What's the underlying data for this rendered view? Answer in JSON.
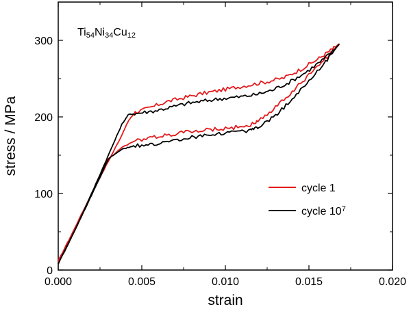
{
  "chart_data": {
    "type": "line",
    "xlabel": "strain",
    "ylabel": "stress / MPa",
    "xlim": [
      0.0,
      0.02
    ],
    "ylim": [
      0,
      350
    ],
    "x_ticks": [
      0.0,
      0.005,
      0.01,
      0.015,
      0.02
    ],
    "x_tick_labels": [
      "0.000",
      "0.005",
      "0.010",
      "0.015",
      "0.020"
    ],
    "y_ticks": [
      0,
      100,
      200,
      300
    ],
    "y_tick_labels": [
      "0",
      "100",
      "200",
      "300"
    ],
    "grid": false,
    "legend_position": "bottom-right",
    "annotation": {
      "parts": [
        {
          "text": "Ti",
          "sub": false
        },
        {
          "text": "54",
          "sub": true
        },
        {
          "text": "Ni",
          "sub": false
        },
        {
          "text": "34",
          "sub": true
        },
        {
          "text": "Cu",
          "sub": false
        },
        {
          "text": "12",
          "sub": true
        }
      ]
    },
    "series": [
      {
        "name": "cycle 1",
        "label_base": "cycle 1",
        "label_sup": "",
        "color": "#e31a1c",
        "points": [
          [
            0.0,
            12
          ],
          [
            0.001,
            55
          ],
          [
            0.002,
            100
          ],
          [
            0.003,
            142
          ],
          [
            0.0038,
            176
          ],
          [
            0.0042,
            195
          ],
          [
            0.0046,
            206
          ],
          [
            0.0055,
            212
          ],
          [
            0.0065,
            220
          ],
          [
            0.0075,
            225
          ],
          [
            0.0085,
            230
          ],
          [
            0.0095,
            234
          ],
          [
            0.0105,
            238
          ],
          [
            0.0115,
            242
          ],
          [
            0.0125,
            246
          ],
          [
            0.0135,
            251
          ],
          [
            0.0145,
            262
          ],
          [
            0.0155,
            275
          ],
          [
            0.0163,
            287
          ],
          [
            0.0168,
            295
          ],
          [
            0.016,
            276
          ],
          [
            0.015,
            255
          ],
          [
            0.014,
            233
          ],
          [
            0.013,
            212
          ],
          [
            0.012,
            195
          ],
          [
            0.0115,
            190
          ],
          [
            0.0105,
            186
          ],
          [
            0.0095,
            184
          ],
          [
            0.0085,
            182
          ],
          [
            0.0075,
            180
          ],
          [
            0.0065,
            176
          ],
          [
            0.0055,
            173
          ],
          [
            0.0045,
            168
          ],
          [
            0.0038,
            160
          ],
          [
            0.003,
            145
          ],
          [
            0.002,
            100
          ],
          [
            0.001,
            55
          ],
          [
            0.0,
            10
          ]
        ]
      },
      {
        "name": "cycle 10^7",
        "label_base": "cycle 10",
        "label_sup": "7",
        "color": "#000000",
        "points": [
          [
            0.0,
            8
          ],
          [
            0.001,
            52
          ],
          [
            0.002,
            100
          ],
          [
            0.003,
            150
          ],
          [
            0.0038,
            190
          ],
          [
            0.0042,
            203
          ],
          [
            0.0048,
            205
          ],
          [
            0.0058,
            208
          ],
          [
            0.0068,
            213
          ],
          [
            0.0078,
            218
          ],
          [
            0.0088,
            221
          ],
          [
            0.0098,
            224
          ],
          [
            0.0108,
            226
          ],
          [
            0.0118,
            229
          ],
          [
            0.0128,
            235
          ],
          [
            0.0138,
            245
          ],
          [
            0.0148,
            258
          ],
          [
            0.0158,
            274
          ],
          [
            0.0165,
            287
          ],
          [
            0.0168,
            295
          ],
          [
            0.016,
            272
          ],
          [
            0.015,
            247
          ],
          [
            0.014,
            222
          ],
          [
            0.013,
            202
          ],
          [
            0.012,
            187
          ],
          [
            0.0115,
            182
          ],
          [
            0.0105,
            180
          ],
          [
            0.0095,
            178
          ],
          [
            0.0085,
            175
          ],
          [
            0.0075,
            172
          ],
          [
            0.0065,
            167
          ],
          [
            0.0055,
            164
          ],
          [
            0.0045,
            162
          ],
          [
            0.0038,
            158
          ],
          [
            0.003,
            145
          ],
          [
            0.002,
            98
          ],
          [
            0.001,
            52
          ],
          [
            0.0,
            8
          ]
        ]
      }
    ]
  }
}
